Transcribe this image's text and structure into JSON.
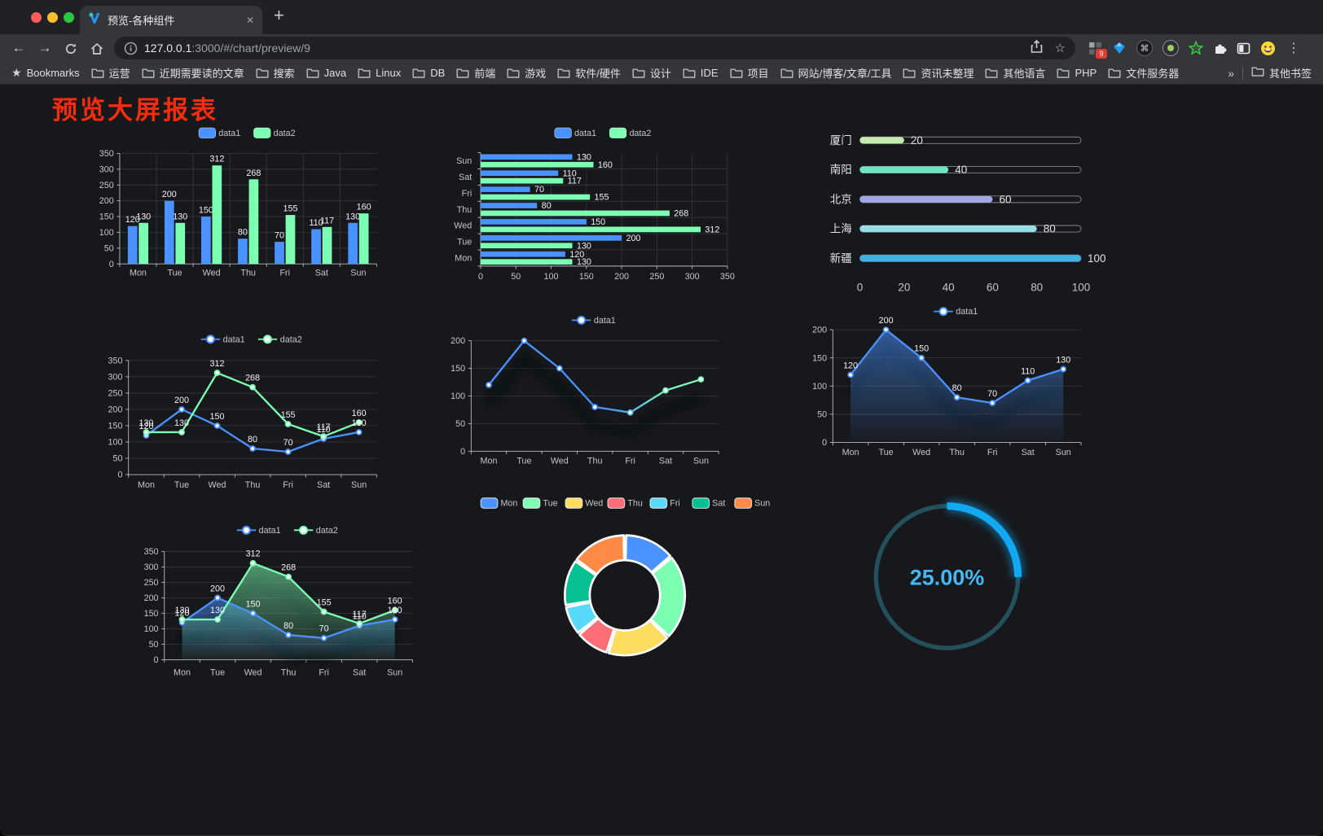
{
  "browser": {
    "tab": {
      "title": "预览-各种组件",
      "close_label": "✕"
    },
    "new_tab_label": "+",
    "url": {
      "host": "127.0.0.1",
      "rest": ":3000/#/chart/preview/9"
    },
    "extensions_badge": "9",
    "menu_label": "⋮",
    "nav": {
      "back": "←",
      "forward": "→"
    },
    "bookmarks": {
      "star": "★",
      "label": "Bookmarks",
      "items": [
        "运营",
        "近期需要读的文章",
        "搜索",
        "Java",
        "Linux",
        "DB",
        "前端",
        "游戏",
        "软件/硬件",
        "设计",
        "IDE",
        "项目",
        "网站/博客/文章/工具",
        "资讯未整理",
        "其他语言",
        "PHP",
        "文件服务器"
      ],
      "overflow": "»",
      "other": "其他书签"
    }
  },
  "page": {
    "title": "预览大屏报表"
  },
  "chart_data": [
    {
      "id": "bar1",
      "type": "bar",
      "categories": [
        "Mon",
        "Tue",
        "Wed",
        "Thu",
        "Fri",
        "Sat",
        "Sun"
      ],
      "series": [
        {
          "name": "data1",
          "color": "#4992ff",
          "values": [
            120,
            200,
            150,
            80,
            70,
            110,
            130
          ]
        },
        {
          "name": "data2",
          "color": "#7cffb2",
          "values": [
            130,
            130,
            312,
            268,
            155,
            117,
            160
          ]
        }
      ],
      "ylim": [
        0,
        350
      ],
      "ystep": 50,
      "show_labels": true,
      "legend_position": "top",
      "grid": true
    },
    {
      "id": "hbar1",
      "type": "hbar",
      "categories": [
        "Mon",
        "Tue",
        "Wed",
        "Thu",
        "Fri",
        "Sat",
        "Sun"
      ],
      "series": [
        {
          "name": "data1",
          "color": "#4992ff",
          "values": [
            120,
            200,
            150,
            80,
            70,
            110,
            130
          ]
        },
        {
          "name": "data2",
          "color": "#7cffb2",
          "values": [
            130,
            130,
            312,
            268,
            155,
            117,
            160
          ]
        }
      ],
      "xlim": [
        0,
        350
      ],
      "xstep": 50,
      "show_labels": true,
      "legend_position": "top",
      "grid": true
    },
    {
      "id": "progress1",
      "type": "progress",
      "xlim": [
        0,
        100
      ],
      "xticks": [
        0,
        20,
        40,
        60,
        80,
        100
      ],
      "items": [
        {
          "label": "厦门",
          "value": 20,
          "color": "#c4ebad"
        },
        {
          "label": "南阳",
          "value": 40,
          "color": "#6be6c1"
        },
        {
          "label": "北京",
          "value": 60,
          "color": "#a0a7e6"
        },
        {
          "label": "上海",
          "value": 80,
          "color": "#96dee8"
        },
        {
          "label": "新疆",
          "value": 100,
          "color": "#3fb1e3"
        }
      ]
    },
    {
      "id": "line1",
      "type": "line",
      "categories": [
        "Mon",
        "Tue",
        "Wed",
        "Thu",
        "Fri",
        "Sat",
        "Sun"
      ],
      "series": [
        {
          "name": "data1",
          "color": "#4992ff",
          "values": [
            120,
            200,
            150,
            80,
            70,
            110,
            130
          ]
        },
        {
          "name": "data2",
          "color": "#7cffb2",
          "values": [
            130,
            130,
            312,
            268,
            155,
            117,
            160
          ]
        }
      ],
      "ylim": [
        0,
        350
      ],
      "ystep": 50,
      "show_labels": true,
      "legend_position": "top",
      "grid": true
    },
    {
      "id": "line2",
      "type": "line",
      "categories": [
        "Mon",
        "Tue",
        "Wed",
        "Thu",
        "Fri",
        "Sat",
        "Sun"
      ],
      "series": [
        {
          "name": "data1",
          "color": "#4992ff",
          "gradient": [
            "#4992ff",
            "#7cffb2"
          ],
          "values": [
            120,
            200,
            150,
            80,
            70,
            110,
            130
          ]
        }
      ],
      "ylim": [
        0,
        200
      ],
      "ystep": 50,
      "show_labels": false,
      "shadow": true,
      "legend_position": "top",
      "grid": true
    },
    {
      "id": "line3",
      "type": "line",
      "categories": [
        "Mon",
        "Tue",
        "Wed",
        "Thu",
        "Fri",
        "Sat",
        "Sun"
      ],
      "series": [
        {
          "name": "data1",
          "color": "#4992ff",
          "area": true,
          "values": [
            120,
            200,
            150,
            80,
            70,
            110,
            130
          ]
        }
      ],
      "ylim": [
        0,
        200
      ],
      "ystep": 50,
      "show_labels": true,
      "shadow": true,
      "legend_position": "top",
      "grid": true
    },
    {
      "id": "line4",
      "type": "line",
      "categories": [
        "Mon",
        "Tue",
        "Wed",
        "Thu",
        "Fri",
        "Sat",
        "Sun"
      ],
      "series": [
        {
          "name": "data1",
          "color": "#4992ff",
          "area": true,
          "values": [
            120,
            200,
            150,
            80,
            70,
            110,
            130
          ]
        },
        {
          "name": "data2",
          "color": "#7cffb2",
          "area": true,
          "values": [
            130,
            130,
            312,
            268,
            155,
            117,
            160
          ]
        }
      ],
      "ylim": [
        0,
        350
      ],
      "ystep": 50,
      "show_labels": true,
      "shadow": true,
      "legend_position": "top",
      "grid": true
    },
    {
      "id": "pie1",
      "type": "pie",
      "legend_position": "top",
      "items": [
        {
          "label": "Mon",
          "value": 120,
          "color": "#4992ff"
        },
        {
          "label": "Tue",
          "value": 200,
          "color": "#7cffb2"
        },
        {
          "label": "Wed",
          "value": 150,
          "color": "#fddd60"
        },
        {
          "label": "Thu",
          "value": 80,
          "color": "#ff6e76"
        },
        {
          "label": "Fri",
          "value": 70,
          "color": "#58d9f9"
        },
        {
          "label": "Sat",
          "value": 110,
          "color": "#05c091"
        },
        {
          "label": "Sun",
          "value": 130,
          "color": "#ff8a45"
        }
      ]
    },
    {
      "id": "gauge1",
      "type": "gauge",
      "value": 25,
      "max": 100,
      "display": "25.00%",
      "track_color": "#24505c",
      "bar_color": "#11a9f3",
      "text_color": "#46b7f4"
    }
  ]
}
